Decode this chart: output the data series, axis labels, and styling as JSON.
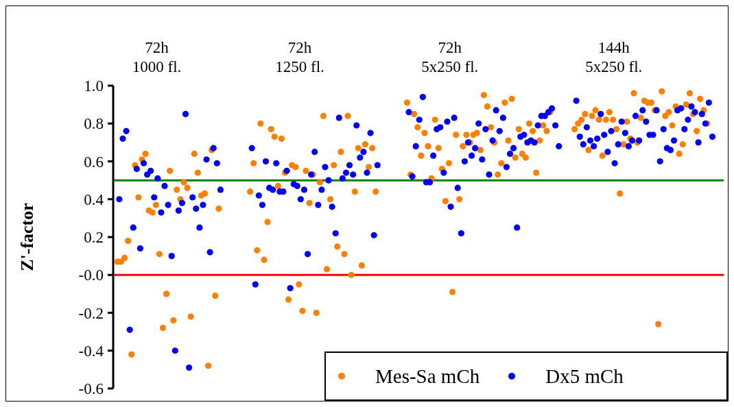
{
  "chart_data": {
    "type": "scatter",
    "ylabel": "Z'-factor",
    "categories": [
      null,
      null,
      null,
      null,
      null,
      null,
      null,
      null,
      null,
      null,
      null,
      null,
      "72h\n1000 fl.",
      null,
      null,
      null,
      null,
      null,
      null,
      null,
      null,
      null,
      null,
      null,
      null,
      null,
      null,
      null,
      null,
      null,
      null,
      null,
      null,
      null,
      null,
      null,
      null,
      null,
      null,
      null,
      null,
      null,
      null,
      null,
      null,
      null,
      null,
      null,
      null,
      null,
      null,
      null,
      null,
      "72h\n1250 fl.",
      null,
      null,
      null,
      null,
      null,
      null,
      null,
      null,
      null,
      null,
      null,
      null,
      null,
      null,
      null,
      null,
      null,
      null,
      null,
      null,
      null,
      null,
      null,
      null,
      null,
      null,
      null,
      null,
      null,
      null,
      null,
      null,
      null,
      null,
      null,
      null,
      null,
      null,
      null,
      null,
      null,
      null,
      "72h\n5x250 fl.",
      null,
      null,
      null,
      null,
      null,
      null,
      null,
      null,
      null,
      null,
      null,
      null,
      null,
      null,
      null,
      null,
      null,
      null,
      null,
      null,
      null,
      null,
      null,
      null,
      null,
      null,
      null,
      null,
      null,
      null,
      null,
      null,
      null,
      null,
      null,
      null,
      null,
      null,
      null,
      null,
      null,
      null,
      null,
      null,
      null,
      null,
      "144h\n5x250 fl.",
      null,
      null,
      null,
      null,
      null,
      null,
      null,
      null,
      null,
      null,
      null,
      null,
      null,
      null,
      null,
      null,
      null,
      null,
      null,
      null,
      null,
      null,
      null,
      null,
      null,
      null,
      null,
      null,
      null,
      null,
      null
    ],
    "ylim": [
      -0.6,
      1.0
    ],
    "yticks": [
      {
        "value": 1.0,
        "label": "1.0"
      },
      {
        "value": 0.8,
        "label": "0.8"
      },
      {
        "value": 0.6,
        "label": "0.6"
      },
      {
        "value": 0.4,
        "label": "0.4"
      },
      {
        "value": 0.2,
        "label": "0.2"
      },
      {
        "value": 0,
        "label": "-0.0"
      },
      {
        "value": -0.2,
        "label": "-0.2"
      },
      {
        "value": -0.4,
        "label": "-0.4"
      },
      {
        "value": -0.6,
        "label": "-0.6"
      }
    ],
    "ref_lines": [
      {
        "axis": "y",
        "value": 0.5,
        "color": "#008000"
      },
      {
        "axis": "y",
        "value": 0,
        "color": "#ff0000"
      }
    ],
    "grid": false,
    "legend": "bottom right",
    "marker": "circle",
    "series": [
      {
        "name": "Mes-Sa mCh",
        "color": "#ff8000",
        "values": [
          null,
          0.07,
          0.07,
          0.09,
          0.18,
          -0.42,
          0.58,
          0.41,
          0.61,
          0.64,
          0.34,
          0.33,
          0.37,
          0.11,
          -0.28,
          -0.1,
          0.55,
          -0.24,
          0.45,
          0.4,
          0.49,
          0.46,
          -0.22,
          0.64,
          0.54,
          0.42,
          0.43,
          -0.48,
          0.66,
          -0.11,
          0.35,
          null,
          null,
          null,
          null,
          null,
          null,
          null,
          null,
          0.44,
          0.59,
          0.13,
          0.8,
          0.08,
          0.28,
          0.77,
          0.73,
          0.47,
          0.72,
          0.54,
          -0.13,
          0.58,
          0.57,
          -0.05,
          -0.19,
          0.55,
          0.38,
          0.53,
          -0.2,
          0.49,
          0.84,
          0.03,
          0.4,
          0.58,
          0.15,
          0.65,
          0.11,
          0.84,
          0.0,
          0.44,
          0.67,
          0.05,
          0.69,
          0.57,
          0.67,
          0.44,
          null,
          null,
          null,
          null,
          null,
          null,
          null,
          null,
          0.91,
          0.53,
          0.85,
          0.78,
          0.63,
          0.75,
          0.68,
          0.51,
          0.82,
          0.67,
          0.56,
          0.39,
          0.59,
          -0.09,
          0.74,
          0.4,
          0.68,
          0.74,
          0.7,
          0.74,
          0.75,
          0.66,
          0.95,
          0.89,
          0.78,
          0.7,
          0.53,
          0.59,
          0.91,
          0.71,
          0.93,
          0.62,
          0.77,
          0.64,
          0.62,
          0.8,
          0.76,
          0.54,
          0.71,
          0.79,
          0.76,
          0.86,
          null,
          null,
          null,
          null,
          null,
          null,
          0.77,
          0.8,
          0.82,
          0.85,
          0.66,
          0.84,
          0.87,
          0.82,
          0.63,
          0.82,
          0.86,
          0.82,
          0.77,
          0.43,
          0.69,
          0.81,
          0.72,
          0.96,
          0.7,
          0.83,
          0.92,
          0.91,
          0.91,
          0.87,
          -0.26,
          0.97,
          0.84,
          0.86,
          0.79,
          0.89,
          0.64,
          0.69,
          0.9,
          0.96,
          0.85,
          0.76,
          0.93,
          0.87,
          0.8,
          null,
          null,
          null,
          null
        ]
      },
      {
        "name": "Dx5 mCh",
        "color": "#0000ff",
        "values": [
          null,
          0.4,
          0.72,
          0.76,
          -0.29,
          0.25,
          0.56,
          0.14,
          0.59,
          0.53,
          0.55,
          0.41,
          0.51,
          0.33,
          0.47,
          0.37,
          0.1,
          -0.4,
          0.34,
          0.38,
          0.85,
          -0.49,
          0.41,
          0.35,
          0.25,
          0.37,
          0.61,
          0.12,
          0.67,
          0.59,
          0.45,
          null,
          null,
          null,
          null,
          null,
          null,
          null,
          null,
          0.67,
          -0.05,
          0.42,
          0.37,
          0.6,
          0.46,
          0.45,
          0.59,
          0.44,
          0.44,
          0.55,
          -0.07,
          0.48,
          0.47,
          0.4,
          0.45,
          0.11,
          0.53,
          0.65,
          0.37,
          0.45,
          0.57,
          0.5,
          0.36,
          0.22,
          0.83,
          0.51,
          0.54,
          0.58,
          0.53,
          0.79,
          0.62,
          0.65,
          0.54,
          0.75,
          0.21,
          0.58,
          null,
          null,
          null,
          null,
          null,
          null,
          null,
          null,
          0.86,
          0.52,
          0.68,
          0.82,
          0.94,
          0.49,
          0.49,
          0.63,
          0.77,
          0.78,
          0.54,
          0.81,
          0.36,
          0.83,
          0.46,
          0.22,
          0.6,
          0.7,
          0.63,
          0.67,
          0.8,
          0.61,
          0.77,
          0.53,
          0.71,
          0.87,
          0.76,
          0.83,
          0.57,
          0.64,
          0.67,
          0.25,
          0.73,
          0.74,
          0.7,
          0.71,
          0.7,
          0.79,
          0.84,
          0.84,
          0.86,
          0.88,
          0.79,
          0.68,
          null,
          null,
          null,
          null,
          0.92,
          0.73,
          0.69,
          0.78,
          0.71,
          0.68,
          0.72,
          0.85,
          0.74,
          0.65,
          0.76,
          0.59,
          0.69,
          0.81,
          0.75,
          0.68,
          0.71,
          0.84,
          0.71,
          0.87,
          0.81,
          0.74,
          0.74,
          0.87,
          0.6,
          0.77,
          0.67,
          0.66,
          0.71,
          0.87,
          0.88,
          0.77,
          0.82,
          0.89,
          0.86,
          0.7,
          0.85,
          0.8,
          0.91,
          0.73,
          null,
          null,
          null
        ]
      }
    ]
  }
}
